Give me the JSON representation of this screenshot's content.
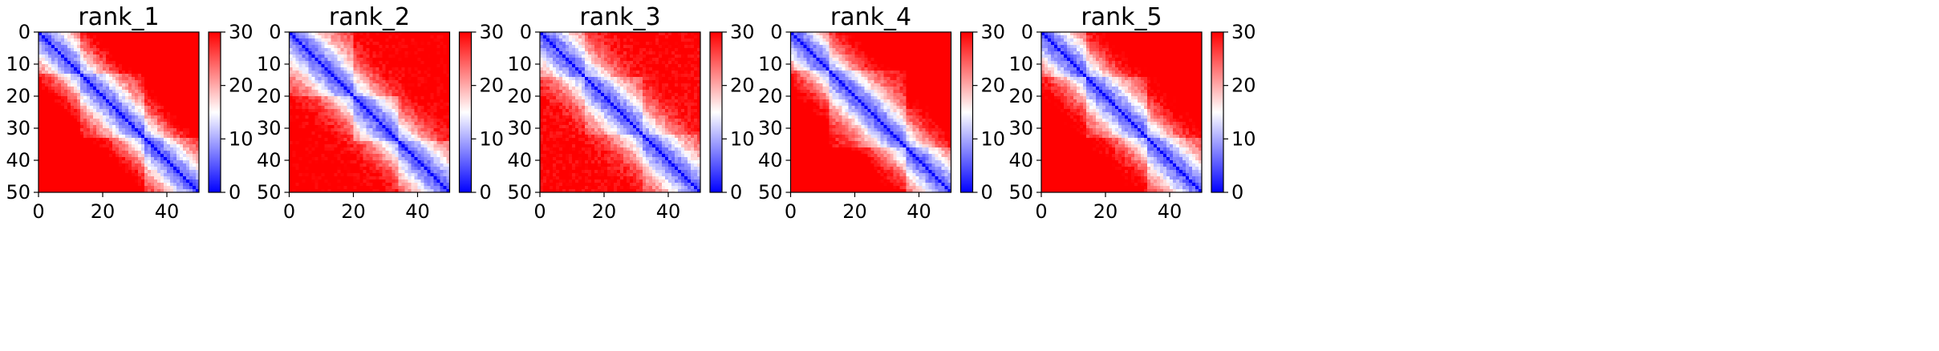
{
  "chart_data": [
    {
      "type": "heatmap",
      "title": "rank_1",
      "x_ticks": [
        0,
        20,
        40
      ],
      "y_ticks": [
        0,
        10,
        20,
        30,
        40,
        50
      ],
      "xlim": [
        0,
        50
      ],
      "ylim": [
        50,
        0
      ],
      "matrix_size": 50,
      "colorbar": {
        "min": 0,
        "max": 30,
        "ticks": [
          0,
          10,
          20,
          30
        ],
        "colormap": "bwr"
      },
      "profile": {
        "dmax": 33,
        "tau": 0.85,
        "base": 4,
        "break_row": 13,
        "break_col": 33,
        "block_boost": 4
      }
    },
    {
      "type": "heatmap",
      "title": "rank_2",
      "x_ticks": [
        0,
        20,
        40
      ],
      "y_ticks": [
        0,
        10,
        20,
        30,
        40,
        50
      ],
      "xlim": [
        0,
        50
      ],
      "ylim": [
        50,
        0
      ],
      "matrix_size": 50,
      "colorbar": {
        "min": 0,
        "max": 30,
        "ticks": [
          0,
          10,
          20,
          30
        ],
        "colormap": "bwr"
      },
      "profile": {
        "dmax": 31,
        "tau": 0.8,
        "base": 4,
        "break_row": 20,
        "break_col": 34,
        "block_boost": 4
      }
    },
    {
      "type": "heatmap",
      "title": "rank_3",
      "x_ticks": [
        0,
        20,
        40
      ],
      "y_ticks": [
        0,
        10,
        20,
        30,
        40,
        50
      ],
      "xlim": [
        0,
        50
      ],
      "ylim": [
        50,
        0
      ],
      "matrix_size": 50,
      "colorbar": {
        "min": 0,
        "max": 30,
        "ticks": [
          0,
          10,
          20,
          30
        ],
        "colormap": "bwr"
      },
      "profile": {
        "dmax": 33,
        "tau": 0.75,
        "base": 4,
        "break_row": 14,
        "break_col": 32,
        "block_boost": 3
      }
    },
    {
      "type": "heatmap",
      "title": "rank_4",
      "x_ticks": [
        0,
        20,
        40
      ],
      "y_ticks": [
        0,
        10,
        20,
        30,
        40,
        50
      ],
      "xlim": [
        0,
        50
      ],
      "ylim": [
        50,
        0
      ],
      "matrix_size": 50,
      "colorbar": {
        "min": 0,
        "max": 30,
        "ticks": [
          0,
          10,
          20,
          30
        ],
        "colormap": "bwr"
      },
      "profile": {
        "dmax": 32,
        "tau": 0.85,
        "base": 4,
        "break_row": 12,
        "break_col": 36,
        "block_boost": 4
      }
    },
    {
      "type": "heatmap",
      "title": "rank_5",
      "x_ticks": [
        0,
        20,
        40
      ],
      "y_ticks": [
        0,
        10,
        20,
        30,
        40,
        50
      ],
      "xlim": [
        0,
        50
      ],
      "ylim": [
        50,
        0
      ],
      "matrix_size": 50,
      "colorbar": {
        "min": 0,
        "max": 30,
        "ticks": [
          0,
          10,
          20,
          30
        ],
        "colormap": "bwr"
      },
      "profile": {
        "dmax": 33,
        "tau": 0.8,
        "base": 4,
        "break_row": 14,
        "break_col": 33,
        "block_boost": 4
      }
    }
  ]
}
